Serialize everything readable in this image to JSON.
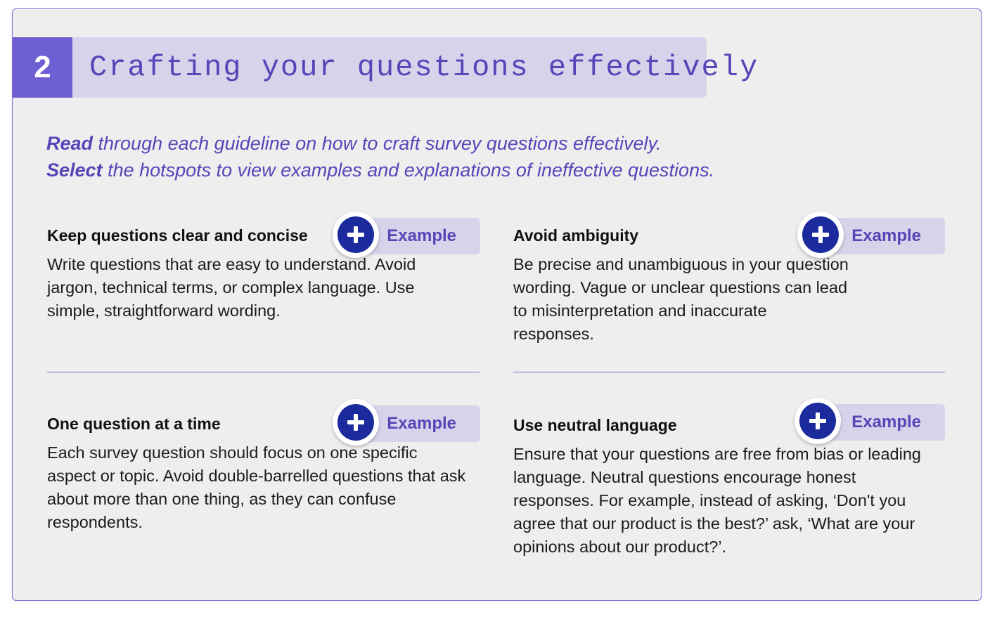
{
  "section": {
    "number": "2",
    "title": "Crafting your questions effectively"
  },
  "intro": {
    "line1_bold": "Read",
    "line1_rest": " through each guideline on how to craft survey questions effectively.",
    "line2_bold": "Select",
    "line2_rest": " the hotspots to view examples and explanations of ineffective questions."
  },
  "cards": [
    {
      "heading": "Keep questions clear and concise",
      "body": "Write questions that are easy to understand. Avoid jargon, technical terms, or complex language. Use simple, straightforward wording.",
      "button_label": "Example"
    },
    {
      "heading": "Avoid ambiguity",
      "body": "Be precise and unambiguous in your question wording. Vague or unclear questions can lead to misinterpretation and inaccurate responses.",
      "button_label": "Example"
    },
    {
      "heading": "One question at a time",
      "body": "Each survey question should focus on one specific aspect or topic. Avoid double-barrelled questions that ask about more than one thing, as they can confuse respondents.",
      "button_label": "Example"
    },
    {
      "heading": "Use neutral language",
      "body": "Ensure that your questions are free from bias or leading language. Neutral questions encourage honest responses. For example, instead of asking, ‘Don't you agree that our product is the best?’ ask, ‘What are your opinions about our product?’.",
      "button_label": "Example"
    }
  ],
  "icons": {
    "hotspot": "plus-circle-icon"
  },
  "colors": {
    "accent": "#6e5fd2",
    "accent_text": "#5546b8",
    "pill_bg": "#d7d3eb",
    "hotspot_blue": "#1b2a9c",
    "panel_bg": "#eeeeef"
  }
}
